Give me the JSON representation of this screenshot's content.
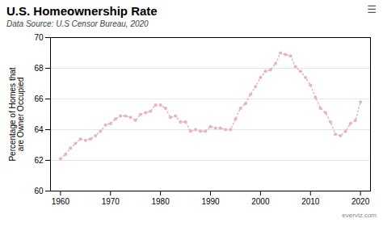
{
  "chart_data": {
    "type": "line",
    "title": "U.S. Homeownership Rate",
    "subtitle": "Data Source: U.S Censor Bureau, 2020",
    "ylabel": "Percentage of Homes that\nare Owner Occupied",
    "annotations": [
      "☰",
      "everviz.com"
    ],
    "x": [
      1960,
      1961,
      1962,
      1963,
      1964,
      1965,
      1966,
      1967,
      1968,
      1969,
      1970,
      1971,
      1972,
      1973,
      1974,
      1975,
      1976,
      1977,
      1978,
      1979,
      1980,
      1981,
      1982,
      1983,
      1984,
      1985,
      1986,
      1987,
      1988,
      1989,
      1990,
      1991,
      1992,
      1993,
      1994,
      1995,
      1996,
      1997,
      1998,
      1999,
      2000,
      2001,
      2002,
      2003,
      2004,
      2005,
      2006,
      2007,
      2008,
      2009,
      2010,
      2011,
      2012,
      2013,
      2014,
      2015,
      2016,
      2017,
      2018,
      2019,
      2020
    ],
    "values": [
      62.1,
      62.4,
      62.8,
      63.1,
      63.4,
      63.3,
      63.4,
      63.6,
      63.9,
      64.3,
      64.4,
      64.7,
      64.9,
      64.9,
      64.8,
      64.6,
      65.0,
      65.1,
      65.2,
      65.6,
      65.6,
      65.4,
      64.8,
      64.9,
      64.5,
      64.5,
      63.9,
      64.0,
      63.9,
      63.9,
      64.2,
      64.1,
      64.1,
      64.0,
      64.0,
      64.7,
      65.4,
      65.7,
      66.3,
      66.8,
      67.4,
      67.8,
      67.9,
      68.3,
      69.0,
      68.9,
      68.8,
      68.1,
      67.8,
      67.4,
      66.9,
      66.1,
      65.4,
      65.1,
      64.5,
      63.7,
      63.6,
      63.9,
      64.4,
      64.6,
      65.8
    ],
    "color": "#e8b4b8",
    "marker": "dot",
    "line_style": "dotted",
    "xlim": [
      1958,
      2022
    ],
    "xticks": [
      1960,
      1970,
      1980,
      1990,
      2000,
      2010,
      2020
    ],
    "ylim": [
      60,
      70
    ],
    "yticks": [
      60,
      62,
      64,
      66,
      68,
      70
    ],
    "grid": true
  }
}
